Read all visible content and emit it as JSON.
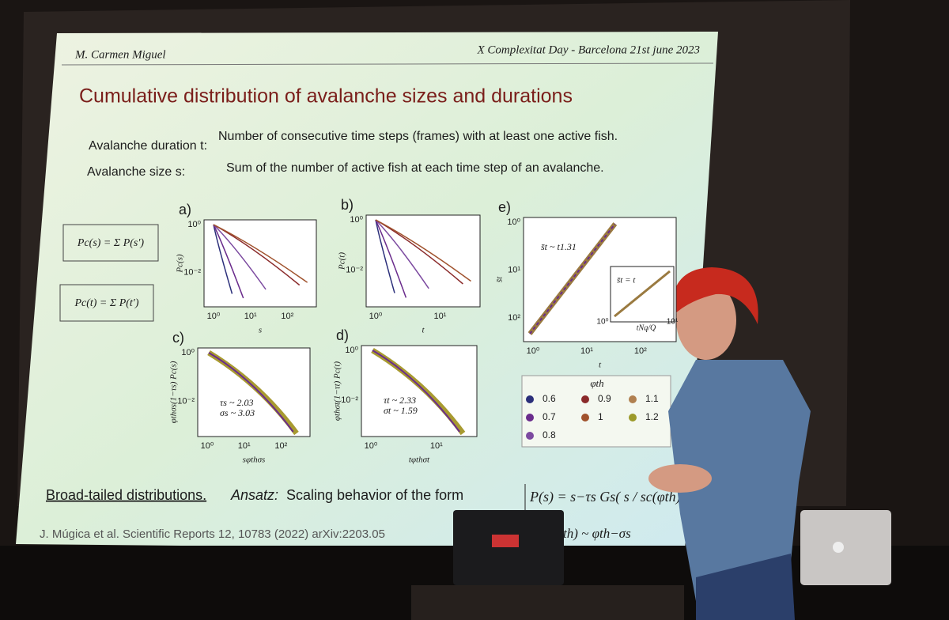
{
  "header": {
    "author": "M. Carmen Miguel",
    "event": "X Complexitat Day - Barcelona 21st june 2023"
  },
  "title": "Cumulative distribution of avalanche sizes and durations",
  "definitions": [
    {
      "term": "Avalanche duration t:",
      "text": "Number of consecutive time steps (frames) with at least one active fish."
    },
    {
      "term": "Avalanche size s:",
      "text": "Sum of the number of active fish at each time step of an avalanche."
    }
  ],
  "formulas": [
    "Pc(s) = Σ P(s′)",
    "Pc(t) = Σ P(t′)"
  ],
  "panels": [
    {
      "label": "a)",
      "ylabel": "Pc(s)",
      "xlabel": "s",
      "xticks": [
        "10⁰",
        "10¹",
        "10²"
      ],
      "yticks": [
        "10⁰",
        "10⁻²"
      ]
    },
    {
      "label": "b)",
      "ylabel": "Pc(t)",
      "xlabel": "t",
      "xticks": [
        "10⁰",
        "10¹"
      ],
      "yticks": [
        "10⁰",
        "10⁻²"
      ]
    },
    {
      "label": "c)",
      "ylabel": "φthσs(1−τs) Pc(s)",
      "xlabel": "sφthσs",
      "xticks": [
        "10⁰",
        "10¹",
        "10²"
      ],
      "yticks": [
        "10⁰",
        "10⁻²"
      ],
      "notes": [
        "τs ~ 2.03",
        "σs ~ 3.03"
      ]
    },
    {
      "label": "d)",
      "ylabel": "φthσt(1−τt) Pc(t)",
      "xlabel": "tφthσt",
      "xticks": [
        "10⁰",
        "10¹"
      ],
      "yticks": [
        "10⁰",
        "10⁻²"
      ],
      "notes": [
        "τt ~ 2.33",
        "σt ~ 1.59"
      ]
    },
    {
      "label": "e)",
      "ylabel": "s̄t",
      "xlabel": "t",
      "xticks": [
        "10⁰",
        "10¹",
        "10²"
      ],
      "yticks": [
        "10⁰",
        "10¹",
        "10²"
      ],
      "notes": [
        "s̄t ~ t1.31"
      ],
      "inset": {
        "note": "s̄t = t",
        "xlabel": "tNq/Q",
        "ticks": [
          "10⁰",
          "10¹"
        ]
      }
    }
  ],
  "legend": {
    "title": "φth",
    "items": [
      0.6,
      0.7,
      0.8,
      0.9,
      1.0,
      1.1,
      1.2
    ]
  },
  "footer": {
    "lead": "Broad-tailed distributions.",
    "ansatz": "Ansatz:",
    "text": "Scaling behavior of the form",
    "formula": "P(s) = s−τs Gs( s / sc(φth) )",
    "citation": "J. Múgica et al. Scientific Reports 12, 10783 (2022) arXiv:2203.05",
    "tail": "th) ~ φth−σs"
  }
}
